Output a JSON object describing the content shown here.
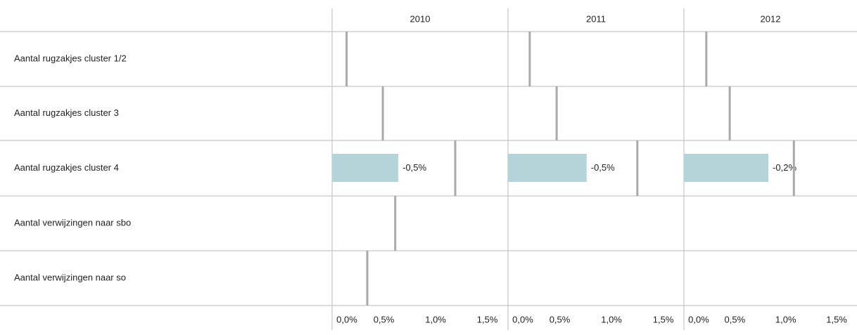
{
  "chart_data": {
    "type": "bar",
    "rows": [
      "Aantal rugzakjes cluster 1/2",
      "Aantal rugzakjes cluster 3",
      "Aantal rugzakjes cluster 4",
      "Aantal verwijzingen naar sbo",
      "Aantal verwijzingen naar so"
    ],
    "panels": [
      {
        "title": "2010",
        "bars": [
          null,
          null,
          0.64,
          null,
          null
        ],
        "bar_labels": [
          null,
          null,
          "-0,5%",
          null,
          null
        ],
        "reference": [
          0.14,
          0.49,
          1.19,
          0.61,
          0.34
        ]
      },
      {
        "title": "2011",
        "bars": [
          null,
          null,
          0.76,
          null,
          null
        ],
        "bar_labels": [
          null,
          null,
          "-0,5%",
          null,
          null
        ],
        "reference": [
          0.21,
          0.47,
          1.25,
          null,
          null
        ]
      },
      {
        "title": "2012",
        "bars": [
          null,
          null,
          0.83,
          null,
          null
        ],
        "bar_labels": [
          null,
          null,
          "-0,2%",
          null,
          null
        ],
        "reference": [
          0.22,
          0.45,
          1.08,
          null,
          null
        ]
      }
    ],
    "bar_color": "#b4d4da",
    "reference_color": "#aaaaaa",
    "xlim": [
      0,
      1.7
    ],
    "xticks": [
      {
        "value": 0,
        "label": "0,0%"
      },
      {
        "value": 0.5,
        "label": "0,5%"
      },
      {
        "value": 1,
        "label": "1,0%"
      },
      {
        "value": 1.5,
        "label": "1,5%"
      }
    ]
  }
}
